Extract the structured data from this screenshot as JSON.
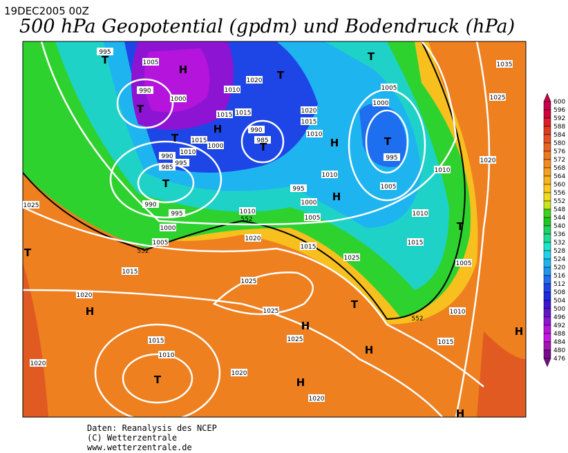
{
  "header": {
    "date": "19DEC2005 00Z",
    "title": "500 hPa Geopotential (gpdm) und Bodendruck (hPa)"
  },
  "map": {
    "isobar_labels": [
      995,
      1005,
      990,
      1000,
      1010,
      1020,
      1015,
      1015,
      990,
      985,
      1015,
      1000,
      1010,
      990,
      995,
      985,
      995,
      1010,
      1000,
      1005,
      1010,
      995,
      990,
      1000,
      1005,
      1020,
      1015,
      1025,
      1010,
      1015,
      1005,
      1010,
      1020,
      1025,
      1035,
      1005,
      1000,
      995,
      1005,
      1020,
      1015,
      1010,
      1025,
      1015,
      1025,
      1020,
      1025,
      1025,
      1015,
      1010,
      1020,
      1020,
      1020,
      1010,
      1015
    ],
    "contour_labels": [
      552,
      552,
      552
    ],
    "pressure_centers": [
      "T",
      "H",
      "T",
      "T",
      "T",
      "T",
      "H",
      "T",
      "T",
      "H",
      "T",
      "H",
      "T",
      "T",
      "H",
      "T",
      "H",
      "H",
      "T",
      "H",
      "H",
      "H"
    ]
  },
  "colorbar": {
    "labels": [
      600,
      596,
      592,
      588,
      584,
      580,
      576,
      572,
      568,
      564,
      560,
      556,
      552,
      548,
      544,
      540,
      536,
      532,
      528,
      524,
      520,
      516,
      512,
      508,
      504,
      500,
      496,
      492,
      488,
      484,
      480,
      476
    ],
    "colors": [
      "#c8004b",
      "#d2003c",
      "#dc1e28",
      "#e03a1e",
      "#e65020",
      "#ea6420",
      "#ee7820",
      "#f28c1e",
      "#f5a01e",
      "#f8b41e",
      "#fac81e",
      "#f0dc1e",
      "#c8e61e",
      "#3cd21e",
      "#1ec81e",
      "#1ed264",
      "#1edc96",
      "#1ee6c8",
      "#1ed2f0",
      "#1eb4f0",
      "#1e96f0",
      "#1e6ef0",
      "#1e46e6",
      "#1e28dc",
      "#3c14d2",
      "#6414c8",
      "#8c14d2",
      "#b414dc",
      "#c814e6",
      "#a014b4",
      "#780a8c"
    ]
  },
  "footer": {
    "lines": [
      "Daten: Reanalysis des NCEP",
      "(C) Wetterzentrale",
      "www.wetterzentrale.de"
    ]
  }
}
